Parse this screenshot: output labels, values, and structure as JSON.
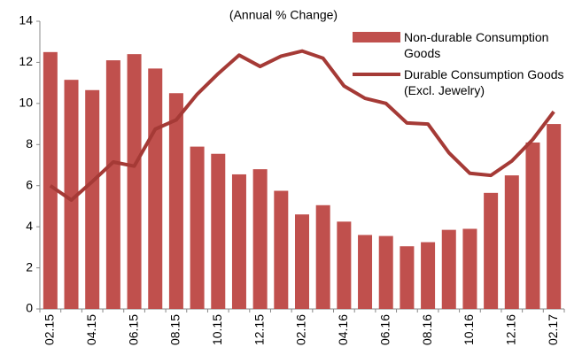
{
  "chart_data": {
    "type": "bar_line",
    "title": "(Annual % Change)",
    "categories": [
      "02.15",
      null,
      "04.15",
      null,
      "06.15",
      null,
      "08.15",
      null,
      "10.15",
      null,
      "12.15",
      null,
      "02.16",
      null,
      "04.16",
      null,
      "06.16",
      null,
      "08.16",
      null,
      "10.16",
      null,
      "12.16",
      null,
      "02.17"
    ],
    "series": [
      {
        "name": "Non-durable Consumption Goods",
        "type": "bar",
        "color": "#c0504d",
        "values": [
          12.5,
          11.15,
          10.65,
          12.1,
          12.4,
          11.7,
          10.5,
          7.9,
          7.55,
          6.55,
          6.8,
          5.75,
          4.6,
          5.05,
          4.25,
          3.6,
          3.55,
          3.05,
          3.25,
          3.85,
          3.9,
          5.65,
          6.5,
          8.1,
          9.0
        ]
      },
      {
        "name": "Durable Consumption Goods (Excl. Jewelry)",
        "type": "line",
        "color": "#a53a36",
        "values": [
          6.0,
          5.3,
          6.2,
          7.15,
          6.95,
          8.75,
          9.2,
          10.45,
          11.45,
          12.35,
          11.8,
          12.3,
          12.55,
          12.2,
          10.85,
          10.25,
          10.0,
          9.05,
          9.0,
          7.6,
          6.6,
          6.5,
          7.2,
          8.25,
          9.6
        ]
      }
    ],
    "ylim": [
      0,
      14
    ],
    "yticks": [
      0,
      2,
      4,
      6,
      8,
      10,
      12,
      14
    ],
    "grid": false,
    "legend": "upper right"
  }
}
